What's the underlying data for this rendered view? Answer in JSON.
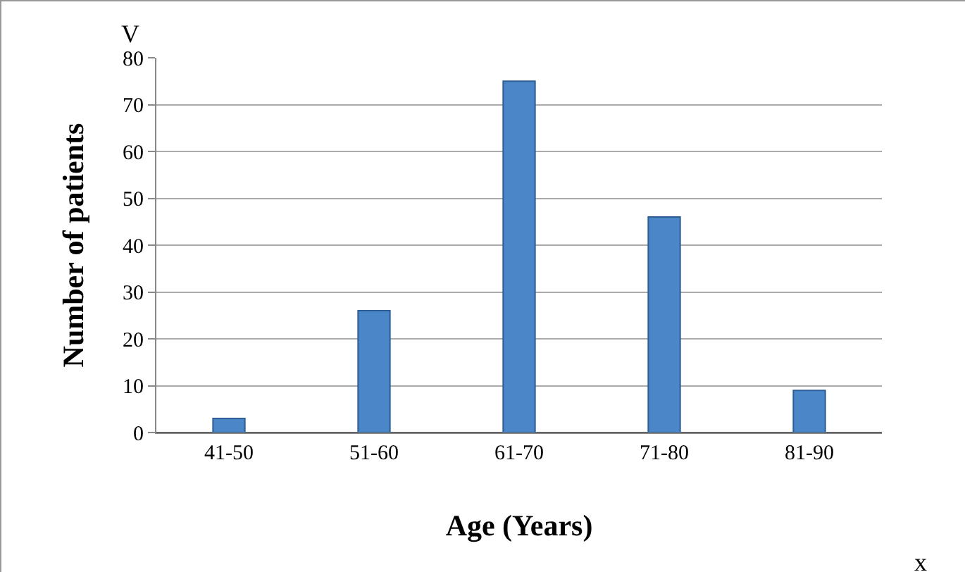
{
  "chart_data": {
    "type": "bar",
    "xlabel": "Age (Years)",
    "ylabel": "Number of patients",
    "categories": [
      "41-50",
      "51-60",
      "61-70",
      "71-80",
      "81-90"
    ],
    "values": [
      3,
      26,
      75,
      46,
      9
    ],
    "color": "#4a86c8",
    "ylim": [
      0,
      80
    ],
    "yticks": [
      0,
      10,
      20,
      30,
      40,
      50,
      60,
      70,
      80
    ],
    "grid": "y",
    "legend": false,
    "annotations": [
      "V",
      "x"
    ]
  }
}
